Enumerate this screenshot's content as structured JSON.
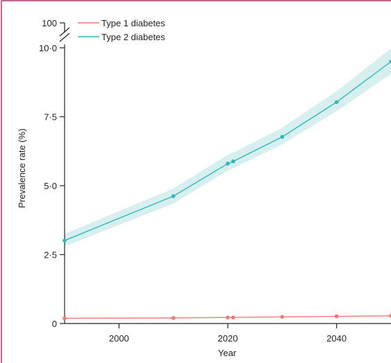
{
  "colors": {
    "frame": "#b0336a",
    "type1": "#ee7a72",
    "type2": "#2fb8b8",
    "band": "#d7f0ef",
    "axis": "#222222"
  },
  "chart_data": {
    "type": "line",
    "xlabel": "Year",
    "ylabel": "Prevalence rate (%)",
    "xlim": [
      1990,
      2050
    ],
    "ylim": [
      0,
      10
    ],
    "axis_break": true,
    "top_tick": 100,
    "x_ticks": [
      2000,
      2020,
      2040
    ],
    "x_tick_labels": [
      "2000",
      "2020",
      "2040"
    ],
    "y_ticks": [
      0,
      2.5,
      5,
      7.5,
      10
    ],
    "y_tick_labels": [
      "0",
      "2·5",
      "5·0",
      "7·5",
      "10·0"
    ],
    "top_tick_label": "100",
    "grid": false,
    "legend": "top-left",
    "series": [
      {
        "name": "Type 1 diabetes",
        "color": "#ee7a72",
        "x": [
          1990,
          2010,
          2020,
          2021,
          2030,
          2040,
          2050
        ],
        "values": [
          0.19,
          0.2,
          0.22,
          0.22,
          0.24,
          0.26,
          0.28
        ]
      },
      {
        "name": "Type 2 diabetes",
        "color": "#2fb8b8",
        "x": [
          1990,
          2010,
          2020,
          2021,
          2030,
          2040,
          2050
        ],
        "values": [
          3.01,
          4.62,
          5.8,
          5.88,
          6.77,
          8.03,
          9.5
        ],
        "lower": [
          2.8,
          4.35,
          5.55,
          5.63,
          6.5,
          7.7,
          9.05
        ],
        "upper": [
          3.25,
          4.9,
          6.12,
          6.2,
          7.1,
          8.43,
          9.98
        ]
      }
    ]
  }
}
